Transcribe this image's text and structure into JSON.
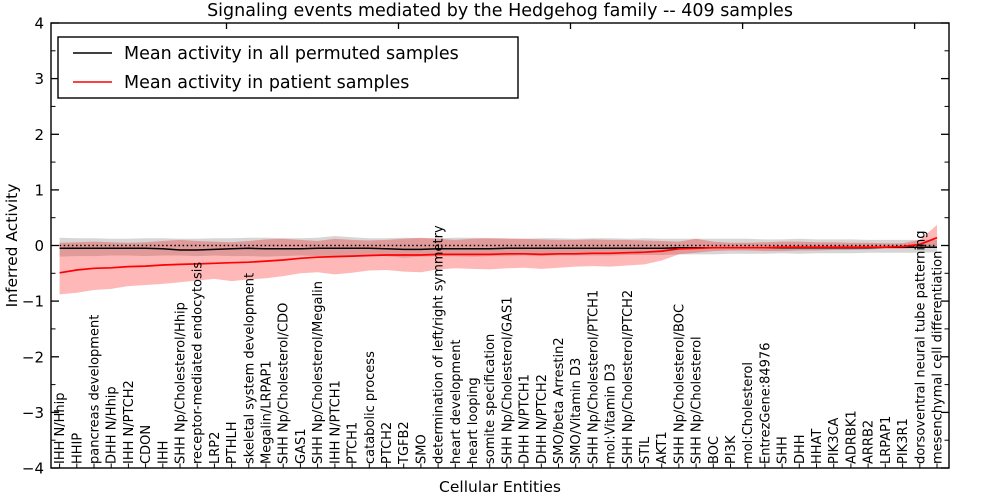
{
  "title": "Signaling events mediated by the Hedgehog family -- 409 samples",
  "chart_data": {
    "type": "line",
    "title": "Signaling events mediated by the Hedgehog family -- 409 samples",
    "xlabel": "Cellular Entities",
    "ylabel": "Inferred Activity",
    "ylim": [
      -4,
      4
    ],
    "yticks": [
      4,
      3,
      2,
      1,
      0,
      -1,
      -2,
      -3,
      -4
    ],
    "grid": false,
    "legend_position": "upper left",
    "legend": [
      {
        "label": "Mean activity in all permuted samples",
        "color": "#000000"
      },
      {
        "label": "Mean activity in patient samples",
        "color": "#ff0000"
      }
    ],
    "categories": [
      "IHH N/Hhip",
      "HHIP",
      "pancreas development",
      "DHH N/Hhip",
      "IHH N/PTCH2",
      "CDON",
      "IHH",
      "SHH Np/Cholesterol/Hhip",
      "receptor-mediated endocytosis",
      "LRP2",
      "PTHLH",
      "skeletal system development",
      "Megalin/LRPAP1",
      "SHH Np/Cholesterol/CDO",
      "GAS1",
      "SHH Np/Cholesterol/Megalin",
      "IHH N/PTCH1",
      "PTCH1",
      "catabolic process",
      "PTCH2",
      "TGFB2",
      "SMO",
      "determination of left/right symmetry",
      "heart development",
      "heart looping",
      "somite specification",
      "SHH Np/Cholesterol/GAS1",
      "DHH N/PTCH1",
      "DHH N/PTCH2",
      "SMO/beta Arrestin2",
      "SMO/Vitamin D3",
      "SHH Np/Cholesterol/PTCH1",
      "mol:Vitamin D3",
      "SHH Np/Cholesterol/PTCH2",
      "STIL",
      "AKT1",
      "SHH Np/Cholesterol/BOC",
      "SHH Np/Cholesterol",
      "BOC",
      "PI3K",
      "mol:Cholesterol",
      "EntrezGene:84976",
      "SHH",
      "DHH",
      "HHAT",
      "PIK3CA",
      "ADRBK1",
      "ARRB2",
      "LRPAP1",
      "PIK3R1",
      "dorsoventral neural tube patterning",
      "mesenchymal cell differentiation"
    ],
    "series": [
      {
        "name": "Mean activity in all permuted samples",
        "color": "#000000",
        "values": [
          -0.05,
          -0.05,
          -0.05,
          -0.05,
          -0.05,
          -0.05,
          -0.06,
          -0.08,
          -0.08,
          -0.07,
          -0.06,
          -0.05,
          -0.06,
          -0.06,
          -0.06,
          -0.05,
          -0.05,
          -0.05,
          -0.05,
          -0.06,
          -0.07,
          -0.07,
          -0.06,
          -0.06,
          -0.06,
          -0.06,
          -0.05,
          -0.05,
          -0.05,
          -0.05,
          -0.05,
          -0.05,
          -0.05,
          -0.05,
          -0.05,
          -0.05,
          -0.04,
          -0.04,
          -0.04,
          -0.04,
          -0.04,
          -0.04,
          -0.04,
          -0.04,
          -0.04,
          -0.04,
          -0.04,
          -0.04,
          -0.03,
          -0.03,
          -0.03,
          -0.03
        ]
      },
      {
        "name": "Mean activity in patient samples",
        "color": "#ff0000",
        "values": [
          -0.49,
          -0.44,
          -0.41,
          -0.4,
          -0.38,
          -0.37,
          -0.35,
          -0.34,
          -0.33,
          -0.32,
          -0.31,
          -0.3,
          -0.28,
          -0.26,
          -0.23,
          -0.21,
          -0.2,
          -0.19,
          -0.18,
          -0.17,
          -0.17,
          -0.17,
          -0.16,
          -0.16,
          -0.16,
          -0.16,
          -0.15,
          -0.15,
          -0.16,
          -0.15,
          -0.15,
          -0.14,
          -0.14,
          -0.13,
          -0.12,
          -0.1,
          -0.06,
          -0.05,
          -0.04,
          -0.04,
          -0.04,
          -0.04,
          -0.03,
          -0.03,
          -0.03,
          -0.03,
          -0.03,
          -0.03,
          -0.03,
          -0.02,
          0.02,
          0.14
        ]
      }
    ],
    "bands": [
      {
        "name": "permuted samples range",
        "color": "#999999",
        "opacity": 0.4,
        "upper": [
          0.14,
          0.13,
          0.13,
          0.12,
          0.12,
          0.13,
          0.13,
          0.12,
          0.12,
          0.13,
          0.13,
          0.14,
          0.14,
          0.13,
          0.13,
          0.14,
          0.17,
          0.15,
          0.13,
          0.13,
          0.14,
          0.13,
          0.13,
          0.14,
          0.14,
          0.13,
          0.13,
          0.12,
          0.13,
          0.13,
          0.12,
          0.13,
          0.13,
          0.12,
          0.13,
          0.12,
          0.12,
          0.12,
          0.12,
          0.12,
          0.12,
          0.11,
          0.11,
          0.12,
          0.11,
          0.11,
          0.11,
          0.1,
          0.1,
          0.1,
          0.1,
          0.1
        ],
        "lower": [
          -0.2,
          -0.19,
          -0.19,
          -0.18,
          -0.18,
          -0.19,
          -0.18,
          -0.18,
          -0.19,
          -0.18,
          -0.19,
          -0.19,
          -0.2,
          -0.19,
          -0.18,
          -0.19,
          -0.21,
          -0.19,
          -0.18,
          -0.19,
          -0.22,
          -0.2,
          -0.19,
          -0.19,
          -0.2,
          -0.19,
          -0.19,
          -0.18,
          -0.19,
          -0.18,
          -0.18,
          -0.18,
          -0.18,
          -0.17,
          -0.17,
          -0.17,
          -0.16,
          -0.16,
          -0.16,
          -0.15,
          -0.15,
          -0.15,
          -0.14,
          -0.15,
          -0.14,
          -0.14,
          -0.14,
          -0.13,
          -0.13,
          -0.13,
          -0.13,
          -0.12
        ]
      },
      {
        "name": "patient samples range",
        "color": "#ff0000",
        "opacity": 0.28,
        "upper": [
          0.05,
          0.06,
          0.07,
          0.06,
          0.05,
          0.06,
          0.08,
          0.1,
          0.08,
          0.07,
          0.06,
          0.08,
          0.11,
          0.12,
          0.1,
          0.08,
          0.12,
          0.1,
          0.09,
          0.1,
          0.12,
          0.14,
          0.12,
          0.1,
          0.12,
          0.13,
          0.12,
          0.12,
          0.11,
          0.1,
          0.1,
          0.11,
          0.1,
          0.1,
          0.09,
          0.08,
          0.07,
          0.12,
          0.07,
          0.05,
          0.05,
          0.06,
          0.07,
          0.07,
          0.06,
          0.06,
          0.05,
          0.05,
          0.04,
          0.04,
          0.1,
          0.37
        ],
        "lower": [
          -0.88,
          -0.85,
          -0.8,
          -0.78,
          -0.73,
          -0.71,
          -0.69,
          -0.66,
          -0.63,
          -0.6,
          -0.64,
          -0.61,
          -0.59,
          -0.55,
          -0.5,
          -0.48,
          -0.52,
          -0.49,
          -0.45,
          -0.44,
          -0.47,
          -0.48,
          -0.43,
          -0.41,
          -0.42,
          -0.43,
          -0.41,
          -0.4,
          -0.42,
          -0.4,
          -0.38,
          -0.37,
          -0.38,
          -0.36,
          -0.34,
          -0.27,
          -0.16,
          -0.13,
          -0.1,
          -0.09,
          -0.09,
          -0.1,
          -0.1,
          -0.09,
          -0.09,
          -0.08,
          -0.08,
          -0.07,
          -0.06,
          -0.06,
          -0.04,
          -0.02
        ]
      }
    ],
    "reference_line": {
      "y": 0,
      "style": "dotted",
      "color": "#000000"
    }
  }
}
